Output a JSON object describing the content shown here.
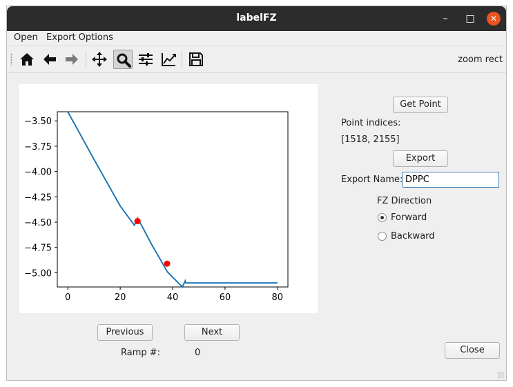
{
  "window": {
    "title": "labelFZ"
  },
  "menubar": {
    "items": [
      "Open",
      "Export Options"
    ]
  },
  "toolbar": {
    "mode": "zoom rect"
  },
  "controls": {
    "get_point": "Get Point",
    "point_indices_label": "Point indices:",
    "point_indices_value": "[1518, 2155]",
    "export": "Export",
    "export_name_label": "Export Name:",
    "export_name_value": "DPPC",
    "fz_direction_label": "FZ Direction",
    "forward": "Forward",
    "backward": "Backward",
    "fz_direction_selected": "Forward",
    "previous": "Previous",
    "next": "Next",
    "ramp_label": "Ramp #:",
    "ramp_value": "0",
    "close": "Close"
  },
  "chart_data": {
    "type": "line",
    "title": "",
    "xlabel": "",
    "ylabel": "",
    "xlim": [
      -4,
      84
    ],
    "ylim": [
      -5.14,
      -3.41
    ],
    "xticks": [
      0,
      20,
      40,
      60,
      80
    ],
    "yticks": [
      -3.5,
      -3.75,
      -4.0,
      -4.25,
      -4.5,
      -4.75,
      -5.0
    ],
    "xtick_labels": [
      "0",
      "20",
      "40",
      "60",
      "80"
    ],
    "ytick_labels": [
      "−3.50",
      "−3.75",
      "−4.00",
      "−4.25",
      "−4.50",
      "−4.75",
      "−5.00"
    ],
    "line_color": "#1f77b4",
    "marker_color": "#ff0000",
    "series": [
      {
        "x": [
          0,
          10,
          20,
          25.4,
          26.7,
          32,
          38,
          43.7,
          44.8,
          45,
          50,
          60,
          70,
          80
        ],
        "y": [
          -3.41,
          -3.88,
          -4.34,
          -4.53,
          -4.46,
          -4.72,
          -4.99,
          -5.14,
          -5.08,
          -5.1,
          -5.1,
          -5.1,
          -5.1,
          -5.1
        ]
      }
    ],
    "markers": {
      "x": [
        26.6,
        37.9
      ],
      "y": [
        -4.49,
        -4.91
      ]
    }
  }
}
